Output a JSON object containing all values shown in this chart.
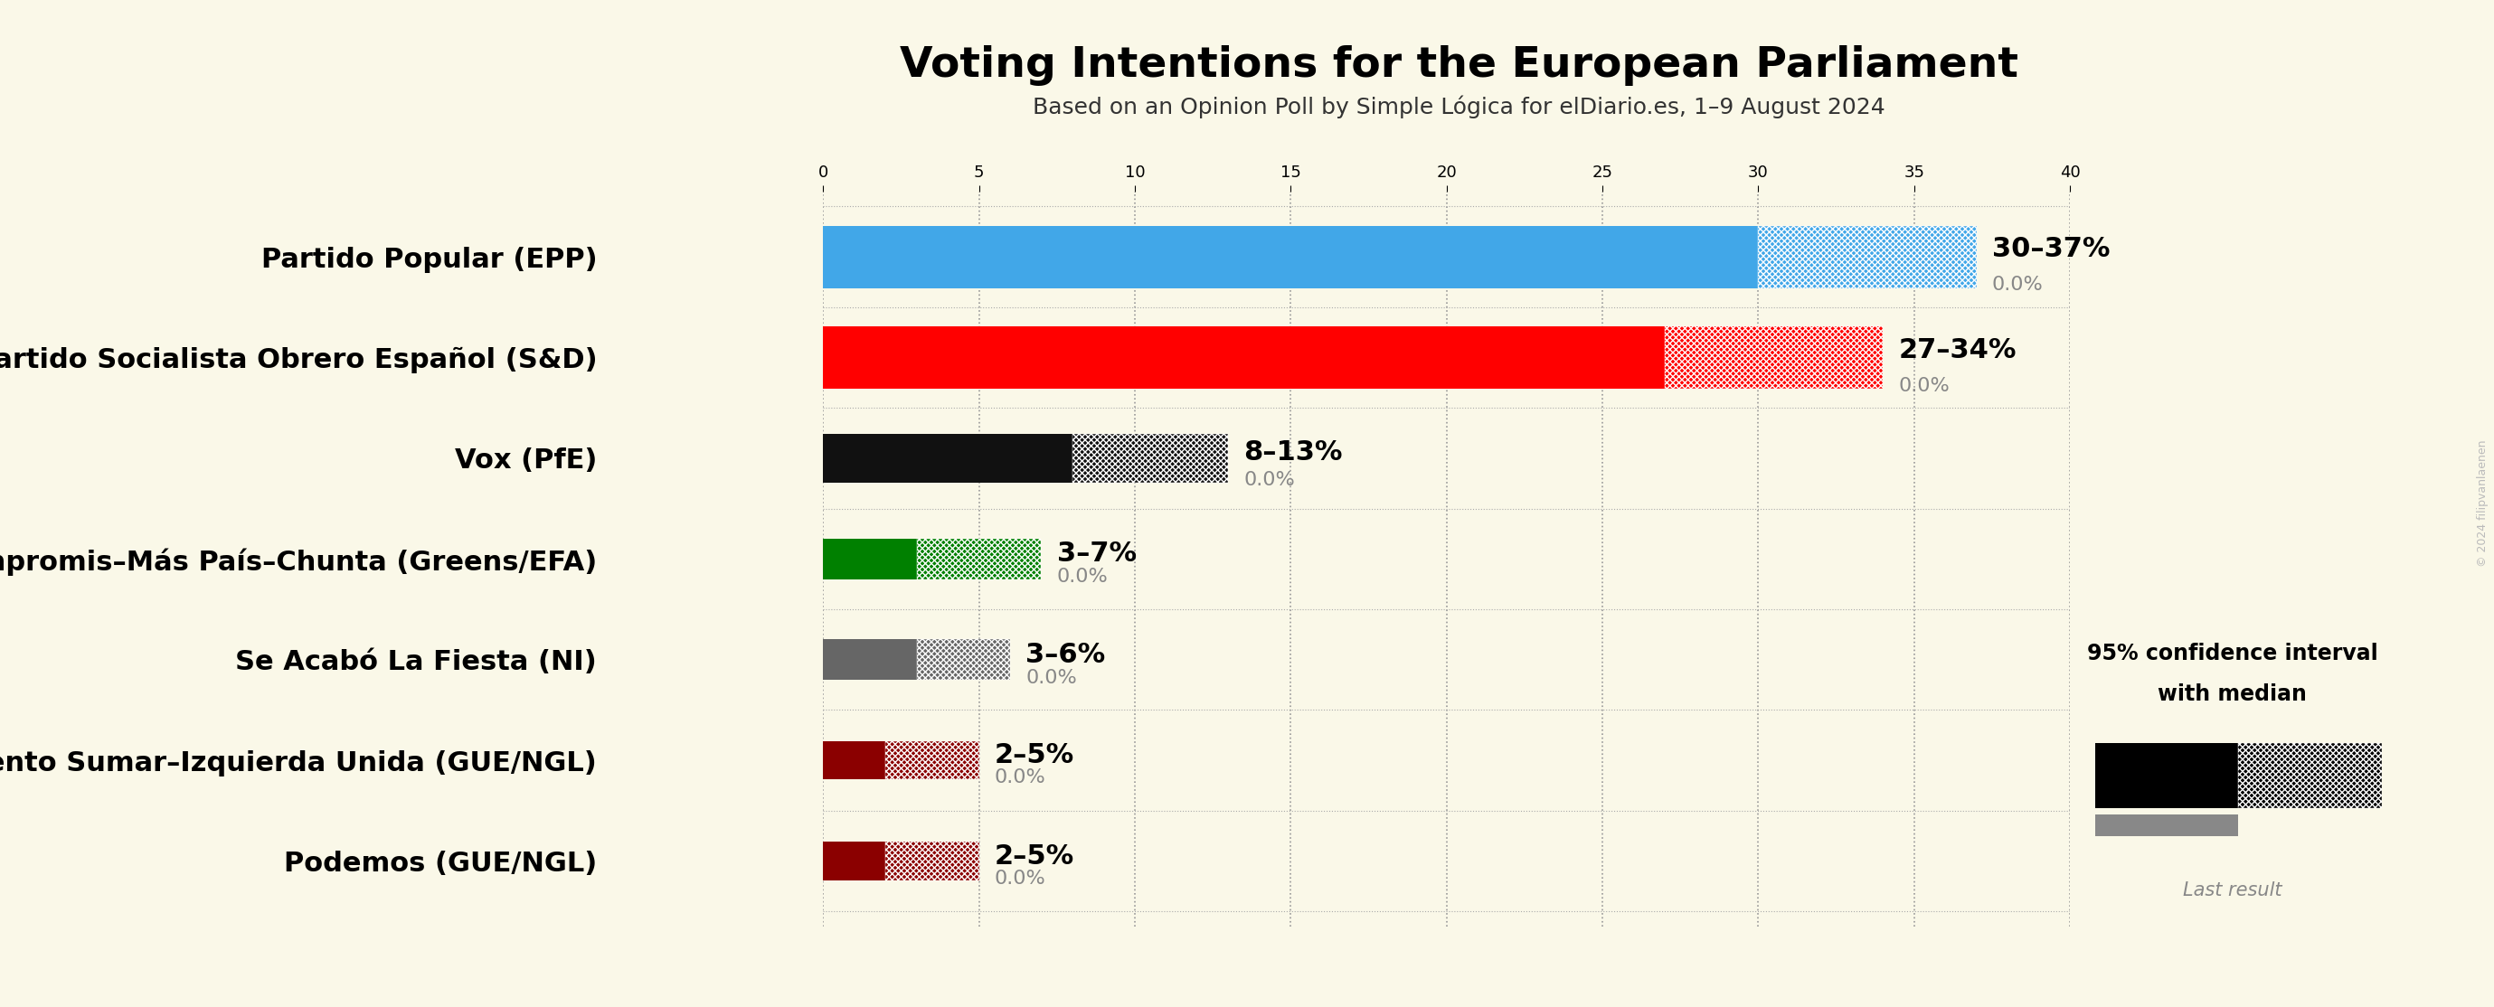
{
  "title": "Voting Intentions for the European Parliament",
  "subtitle": "Based on an Opinion Poll by Simple Lógica for elDiario.es, 1–9 August 2024",
  "background_color": "#faf8e8",
  "parties": [
    {
      "name": "Partido Popular (EPP)",
      "low": 30,
      "high": 37,
      "median": 30,
      "last": 0.0,
      "color": "#41a7e8",
      "label": "30–37%"
    },
    {
      "name": "Partido Socialista Obrero Español (S&D)",
      "low": 27,
      "high": 34,
      "median": 27,
      "last": 0.0,
      "color": "#ff0000",
      "label": "27–34%"
    },
    {
      "name": "Vox (PfE)",
      "low": 8,
      "high": 13,
      "median": 8,
      "last": 0.0,
      "color": "#111111",
      "label": "8–13%"
    },
    {
      "name": "Movimiento Sumar–Catalunya en Comú–Més–Compromis–Más País–Chunta (Greens/EFA)",
      "low": 3,
      "high": 7,
      "median": 3,
      "last": 0.0,
      "color": "#008000",
      "label": "3–7%"
    },
    {
      "name": "Se Acabó La Fiesta (NI)",
      "low": 3,
      "high": 6,
      "median": 3,
      "last": 0.0,
      "color": "#666666",
      "label": "3–6%"
    },
    {
      "name": "Movimiento Sumar–Izquierda Unida (GUE/NGL)",
      "low": 2,
      "high": 5,
      "median": 2,
      "last": 0.0,
      "color": "#8b0000",
      "label": "2–5%"
    },
    {
      "name": "Podemos (GUE/NGL)",
      "low": 2,
      "high": 5,
      "median": 2,
      "last": 0.0,
      "color": "#8b0000",
      "label": "2–5%"
    }
  ],
  "xlim": [
    0,
    40
  ],
  "grid_ticks": [
    0,
    5,
    10,
    15,
    20,
    25,
    30,
    35,
    40
  ],
  "bar_heights": [
    0.62,
    0.62,
    0.48,
    0.4,
    0.4,
    0.38,
    0.38
  ],
  "label_fontsize": 22,
  "value_fontsize": 22,
  "last_fontsize": 16,
  "title_fontsize": 34,
  "subtitle_fontsize": 18,
  "legend_text_line1": "95% confidence interval",
  "legend_text_line2": "with median",
  "legend_text_last": "Last result",
  "watermark": "© 2024 filipvanlaenen"
}
